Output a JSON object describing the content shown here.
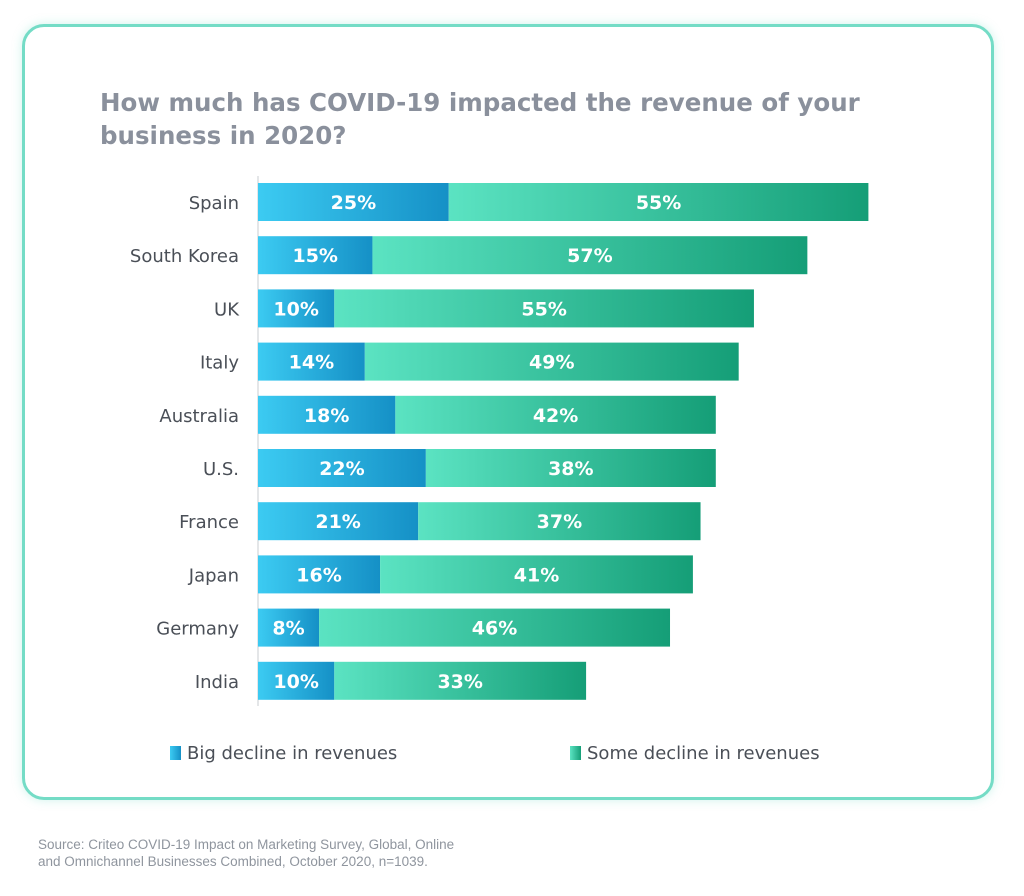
{
  "chart_data": {
    "type": "bar",
    "orientation": "horizontal",
    "stacked": true,
    "title": "How much has COVID-19 impacted the revenue of your business in 2020?",
    "categories": [
      "Spain",
      "South Korea",
      "UK",
      "Italy",
      "Australia",
      "U.S.",
      "France",
      "Japan",
      "Germany",
      "India"
    ],
    "series": [
      {
        "name": "Big decline in revenues",
        "values": [
          25,
          15,
          10,
          14,
          18,
          22,
          21,
          16,
          8,
          10
        ],
        "labels": [
          "25%",
          "15%",
          "10%",
          "14%",
          "18%",
          "22%",
          "21%",
          "16%",
          "8%",
          "10%"
        ],
        "color": "#1aa3d9"
      },
      {
        "name": "Some decline in revenues",
        "values": [
          55,
          57,
          55,
          49,
          42,
          38,
          37,
          41,
          46,
          33
        ],
        "labels": [
          "55%",
          "57%",
          "55%",
          "49%",
          "42%",
          "38%",
          "37%",
          "41%",
          "46%",
          "33%"
        ],
        "color": "#1aaa84"
      }
    ],
    "xlim": [
      0,
      80
    ],
    "grid": false,
    "legend_position": "bottom"
  },
  "source": {
    "line1": "Source: Criteo COVID-19 Impact on Marketing Survey, Global, Online",
    "line2": "and Omnichannel Businesses Combined, October 2020, n=1039."
  },
  "colors": {
    "frame": "#74dcc6",
    "title": "#8a909c",
    "big_decline_light": "#3ccbf2",
    "big_decline_dark": "#1590c6",
    "some_decline_light": "#5be3c2",
    "some_decline_dark": "#159e77"
  }
}
